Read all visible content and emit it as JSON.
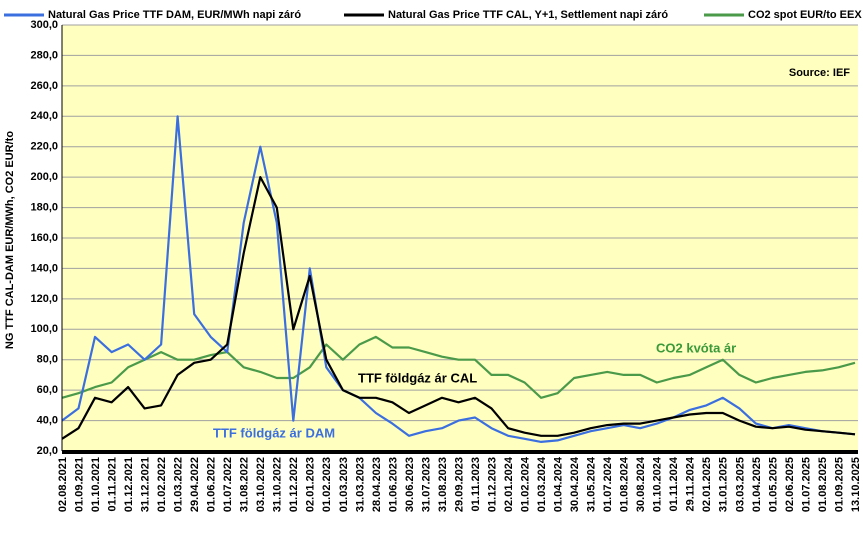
{
  "chart_data": {
    "type": "line",
    "y_label": "NG TTF CAL-DAM EUR/MWh, CO2 EUR/to",
    "source": "Source: IEF",
    "annotations": [
      "CO2 kvóta ár",
      "TTF földgáz ár CAL",
      "TTF földgáz ár DAM"
    ],
    "categories": [
      "02.08.2021",
      "01.09.2021",
      "01.10.2021",
      "01.11.2021",
      "01.12.2021",
      "31.12.2021",
      "01.02.2022",
      "01.03.2022",
      "29.04.2022",
      "01.06.2022",
      "01.07.2022",
      "31.08.2022",
      "03.10.2022",
      "31.10.2022",
      "01.12.2022",
      "02.01.2023",
      "01.02.2023",
      "01.03.2023",
      "31.03.2023",
      "28.04.2023",
      "01.06.2023",
      "30.06.2023",
      "31.07.2023",
      "31.08.2023",
      "29.09.2023",
      "01.11.2023",
      "01.12.2023",
      "02.01.2024",
      "01.02.2024",
      "01.03.2024",
      "01.04.2024",
      "30.04.2024",
      "31.05.2024",
      "01.07.2024",
      "01.08.2024",
      "30.08.2024",
      "01.10.2024",
      "01.11.2024",
      "29.11.2024",
      "02.01.2025",
      "31.01.2025",
      "03.03.2025",
      "01.04.2025",
      "01.05.2025",
      "02.06.2025",
      "01.07.2025",
      "01.08.2025",
      "01.09.2025",
      "13.10.2025"
    ],
    "series": [
      {
        "name": "Natural Gas Price TTF DAM, EUR/MWh napi záró",
        "color": "#3b6fe0",
        "values": [
          40,
          48,
          95,
          85,
          90,
          80,
          90,
          240,
          110,
          95,
          85,
          170,
          220,
          170,
          40,
          140,
          75,
          60,
          55,
          45,
          38,
          30,
          33,
          35,
          40,
          42,
          35,
          30,
          28,
          26,
          27,
          30,
          33,
          35,
          37,
          35,
          38,
          42,
          47,
          50,
          55,
          48,
          38,
          35,
          37,
          35,
          33,
          32,
          31
        ]
      },
      {
        "name": "Natural Gas Price TTF CAL, Y+1, Settlement napi záró",
        "color": "#000000",
        "values": [
          28,
          35,
          55,
          52,
          62,
          48,
          50,
          70,
          78,
          80,
          90,
          150,
          200,
          180,
          100,
          135,
          80,
          60,
          55,
          55,
          52,
          45,
          50,
          55,
          52,
          55,
          48,
          35,
          32,
          30,
          30,
          32,
          35,
          37,
          38,
          38,
          40,
          42,
          44,
          45,
          45,
          40,
          36,
          35,
          36,
          34,
          33,
          32,
          31
        ]
      },
      {
        "name": "CO2 spot EUR/to EEX",
        "color": "#4a9a4a",
        "values": [
          55,
          58,
          62,
          65,
          75,
          80,
          85,
          80,
          80,
          83,
          85,
          75,
          72,
          68,
          68,
          75,
          90,
          80,
          90,
          95,
          88,
          88,
          85,
          82,
          80,
          80,
          70,
          70,
          65,
          55,
          58,
          68,
          70,
          72,
          70,
          70,
          65,
          68,
          70,
          75,
          80,
          70,
          65,
          68,
          70,
          72,
          73,
          75,
          78
        ]
      }
    ],
    "ylim": [
      20,
      300
    ],
    "yticks": [
      {
        "value": 20,
        "label": "20,0"
      },
      {
        "value": 40,
        "label": "40,0"
      },
      {
        "value": 60,
        "label": "60,0"
      },
      {
        "value": 80,
        "label": "80,0"
      },
      {
        "value": 100,
        "label": "100,0"
      },
      {
        "value": 120,
        "label": "120,0"
      },
      {
        "value": 140,
        "label": "140,0"
      },
      {
        "value": 160,
        "label": "160,0"
      },
      {
        "value": 180,
        "label": "180,0"
      },
      {
        "value": 200,
        "label": "200,0"
      },
      {
        "value": 220,
        "label": "220,0"
      },
      {
        "value": 240,
        "label": "240,0"
      },
      {
        "value": 260,
        "label": "260,0"
      },
      {
        "value": 280,
        "label": "280,0"
      },
      {
        "value": 300,
        "label": "300,0"
      }
    ],
    "grid": true
  }
}
